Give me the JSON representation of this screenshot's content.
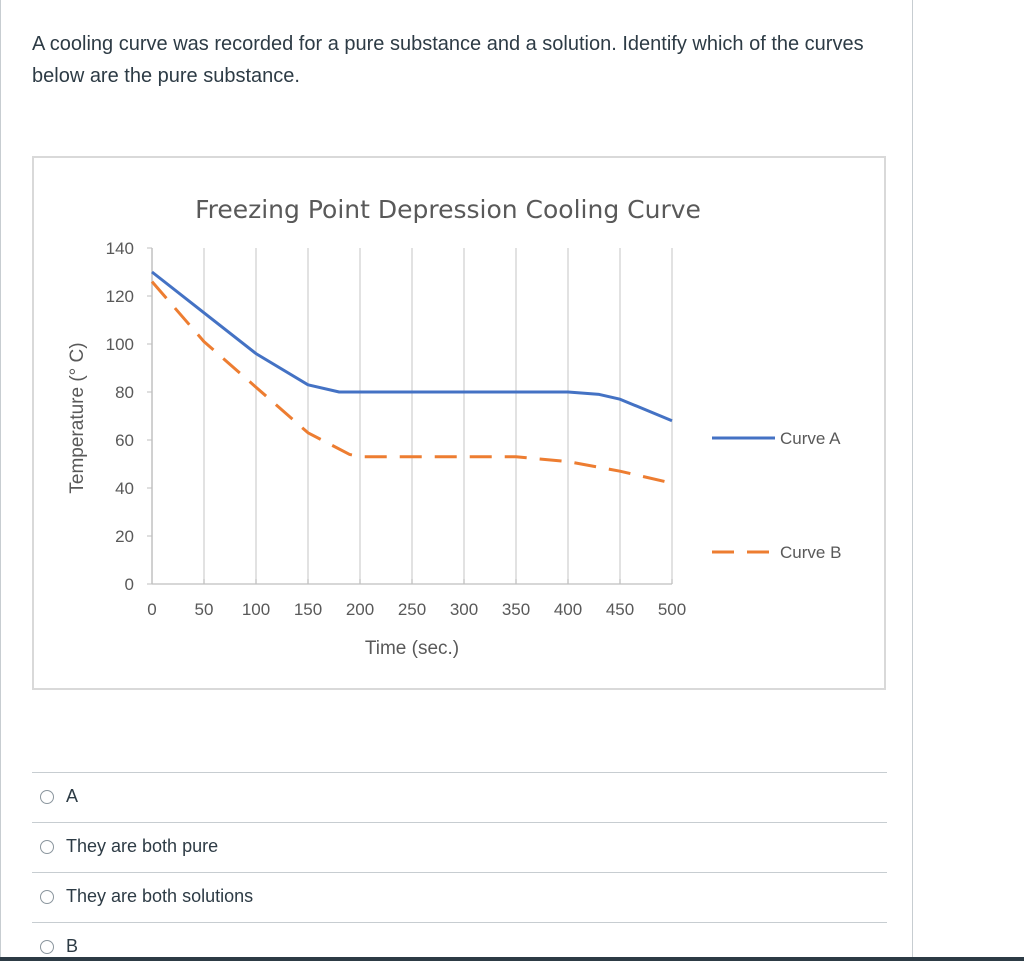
{
  "question": {
    "text": "A cooling curve was recorded for a pure substance and a solution.  Identify which of the curves below are the pure substance."
  },
  "colors": {
    "curve_a": "#4472c4",
    "curve_b": "#ed7d31",
    "grid": "#d9d9d9",
    "text": "#595959"
  },
  "chart_data": {
    "type": "line",
    "title": "Freezing Point Depression Cooling Curve",
    "xlabel": "Time (sec.)",
    "ylabel": "Temperature (° C)",
    "xlim": [
      0,
      500
    ],
    "ylim": [
      0,
      140
    ],
    "x_ticks": [
      "0",
      "50",
      "100",
      "150",
      "200",
      "250",
      "300",
      "350",
      "400",
      "450",
      "500"
    ],
    "y_ticks": [
      "0",
      "20",
      "40",
      "60",
      "80",
      "100",
      "120",
      "140"
    ],
    "grid": "vertical",
    "legend_position": "right",
    "series": [
      {
        "name": "Curve A",
        "style": "solid",
        "points": [
          [
            0,
            130
          ],
          [
            50,
            113
          ],
          [
            100,
            96
          ],
          [
            150,
            83
          ],
          [
            180,
            80
          ],
          [
            200,
            80
          ],
          [
            250,
            80
          ],
          [
            300,
            80
          ],
          [
            350,
            80
          ],
          [
            400,
            80
          ],
          [
            430,
            79
          ],
          [
            450,
            77
          ],
          [
            500,
            68
          ]
        ]
      },
      {
        "name": "Curve B",
        "style": "dashed",
        "points": [
          [
            0,
            126
          ],
          [
            50,
            101
          ],
          [
            100,
            82
          ],
          [
            150,
            63
          ],
          [
            190,
            54
          ],
          [
            200,
            53
          ],
          [
            250,
            53
          ],
          [
            300,
            53
          ],
          [
            350,
            53
          ],
          [
            400,
            51
          ],
          [
            450,
            47
          ],
          [
            500,
            42
          ]
        ]
      }
    ]
  },
  "answers": [
    {
      "label": "A"
    },
    {
      "label": "They are both pure"
    },
    {
      "label": "They are both solutions"
    },
    {
      "label": "B"
    }
  ]
}
